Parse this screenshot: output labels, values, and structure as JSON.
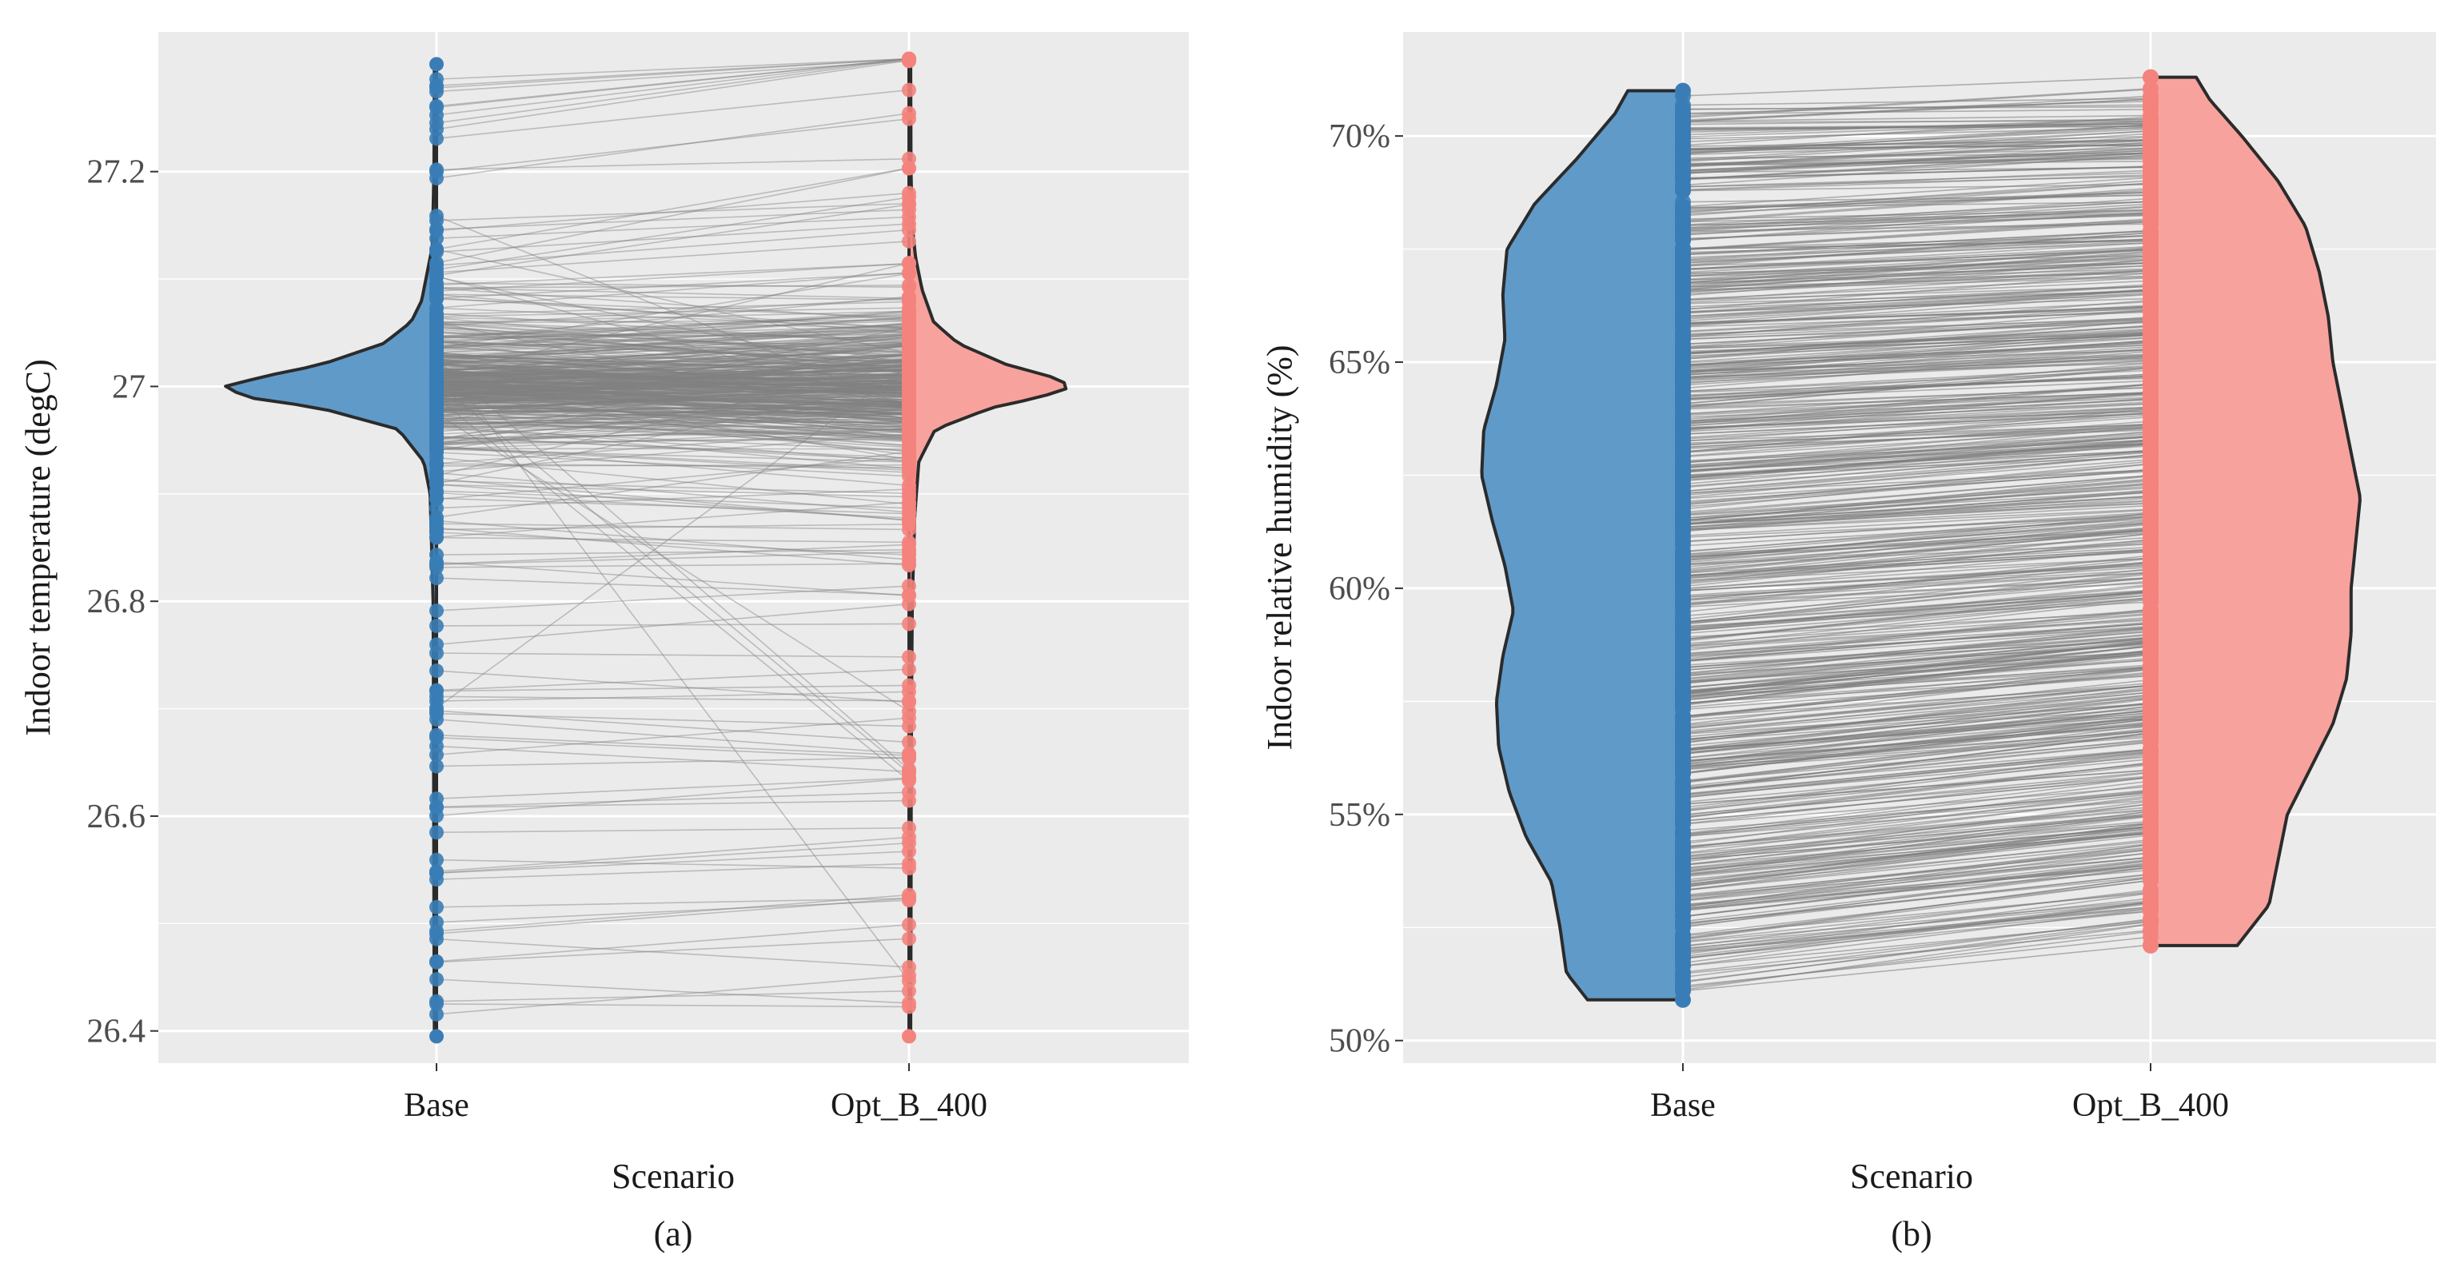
{
  "chart_data": [
    {
      "type": "paired-split-violin",
      "panel_label": "(a)",
      "xlabel": "Scenario",
      "ylabel": "Indoor temperature  (degC)",
      "categories": [
        "Base",
        "Opt_B_400"
      ],
      "ylim": [
        26.37,
        27.33
      ],
      "yticks": [
        26.4,
        26.6,
        26.8,
        27.0,
        27.2
      ],
      "ytick_labels": [
        "26.4",
        "26.6",
        "26.8",
        "27",
        "27.2"
      ],
      "series": [
        {
          "name": "Base",
          "color": "#3A7DB6",
          "fill": "#5D98C7",
          "range": [
            26.395,
            27.3
          ],
          "density": [
            [
              26.395,
              0.01
            ],
            [
              26.5,
              0.012
            ],
            [
              26.6,
              0.013
            ],
            [
              26.7,
              0.014
            ],
            [
              26.8,
              0.016
            ],
            [
              26.9,
              0.03
            ],
            [
              26.93,
              0.06
            ],
            [
              26.96,
              0.18
            ],
            [
              26.98,
              0.55
            ],
            [
              26.99,
              0.9
            ],
            [
              27.0,
              1.0
            ],
            [
              27.01,
              0.8
            ],
            [
              27.02,
              0.55
            ],
            [
              27.04,
              0.25
            ],
            [
              27.06,
              0.12
            ],
            [
              27.08,
              0.07
            ],
            [
              27.1,
              0.05
            ],
            [
              27.13,
              0.02
            ],
            [
              27.2,
              0.012
            ],
            [
              27.3,
              0.01
            ]
          ]
        },
        {
          "name": "Opt_B_400",
          "color": "#F4837D",
          "fill": "#F8A09B",
          "range": [
            26.395,
            27.305
          ],
          "density": [
            [
              26.395,
              0.01
            ],
            [
              26.5,
              0.012
            ],
            [
              26.6,
              0.013
            ],
            [
              26.7,
              0.015
            ],
            [
              26.8,
              0.02
            ],
            [
              26.88,
              0.035
            ],
            [
              26.93,
              0.06
            ],
            [
              26.96,
              0.16
            ],
            [
              26.98,
              0.5
            ],
            [
              26.99,
              0.8
            ],
            [
              27.0,
              1.0
            ],
            [
              27.01,
              0.85
            ],
            [
              27.02,
              0.6
            ],
            [
              27.04,
              0.3
            ],
            [
              27.06,
              0.15
            ],
            [
              27.09,
              0.08
            ],
            [
              27.12,
              0.04
            ],
            [
              27.15,
              0.02
            ],
            [
              27.2,
              0.012
            ],
            [
              27.305,
              0.01
            ]
          ]
        }
      ],
      "n_pairs": 500,
      "pair_line_color": "#808080"
    },
    {
      "type": "paired-split-violin",
      "panel_label": "(b)",
      "xlabel": "Scenario",
      "ylabel": "Indoor relative humidity  (%)",
      "categories": [
        "Base",
        "Opt_B_400"
      ],
      "ylim": [
        49.5,
        72.3
      ],
      "yticks": [
        50,
        55,
        60,
        65,
        70
      ],
      "ytick_labels": [
        "50%",
        "55%",
        "60%",
        "65%",
        "70%"
      ],
      "series": [
        {
          "name": "Base",
          "color": "#3A7DB6",
          "fill": "#5D98C7",
          "range": [
            50.9,
            71.0
          ],
          "density": [
            [
              50.9,
              0.45
            ],
            [
              51.5,
              0.55
            ],
            [
              52.5,
              0.58
            ],
            [
              53.5,
              0.62
            ],
            [
              54.5,
              0.74
            ],
            [
              55.5,
              0.82
            ],
            [
              56.5,
              0.87
            ],
            [
              57.5,
              0.88
            ],
            [
              58.5,
              0.85
            ],
            [
              59.5,
              0.8
            ],
            [
              60.5,
              0.84
            ],
            [
              61.5,
              0.9
            ],
            [
              62.5,
              0.95
            ],
            [
              63.5,
              0.94
            ],
            [
              64.5,
              0.88
            ],
            [
              65.5,
              0.84
            ],
            [
              66.5,
              0.85
            ],
            [
              67.5,
              0.83
            ],
            [
              68.5,
              0.7
            ],
            [
              69.5,
              0.5
            ],
            [
              70.5,
              0.32
            ],
            [
              71.0,
              0.26
            ]
          ]
        },
        {
          "name": "Opt_B_400",
          "color": "#F4837D",
          "fill": "#F8A09B",
          "range": [
            52.1,
            71.3
          ],
          "density": [
            [
              52.1,
              0.38
            ],
            [
              53.0,
              0.52
            ],
            [
              54.0,
              0.56
            ],
            [
              55.0,
              0.6
            ],
            [
              56.0,
              0.7
            ],
            [
              57.0,
              0.8
            ],
            [
              58.0,
              0.86
            ],
            [
              59.0,
              0.88
            ],
            [
              60.0,
              0.88
            ],
            [
              61.0,
              0.9
            ],
            [
              62.0,
              0.92
            ],
            [
              63.0,
              0.88
            ],
            [
              64.0,
              0.84
            ],
            [
              65.0,
              0.8
            ],
            [
              66.0,
              0.78
            ],
            [
              67.0,
              0.74
            ],
            [
              68.0,
              0.68
            ],
            [
              69.0,
              0.56
            ],
            [
              70.0,
              0.4
            ],
            [
              70.8,
              0.26
            ],
            [
              71.3,
              0.2
            ]
          ]
        }
      ],
      "n_pairs": 700,
      "pair_line_color": "#7a7a7a"
    }
  ]
}
